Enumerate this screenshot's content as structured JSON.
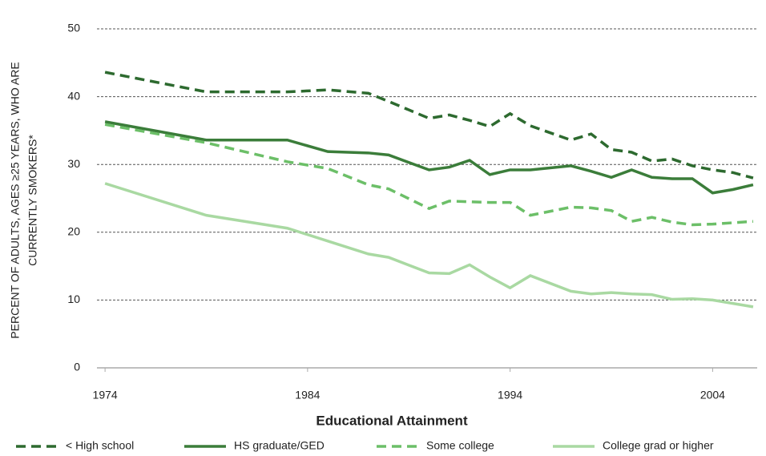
{
  "chart_data": {
    "type": "line",
    "ylabel": [
      "PERCENT OF ADULTS, AGES ≥25 YEARS, WHO ARE",
      "CURRENTLY SMOKERS*"
    ],
    "xlabel": "Educational Attainment",
    "x": [
      1974,
      1979,
      1983,
      1985,
      1987,
      1988,
      1990,
      1991,
      1992,
      1993,
      1994,
      1995,
      1997,
      1998,
      1999,
      2000,
      2001,
      2002,
      2003,
      2004,
      2005,
      2006
    ],
    "series": [
      {
        "name": "< High school",
        "color": "#2d6a2f",
        "dashed": true,
        "values": [
          43.6,
          40.7,
          40.7,
          41.0,
          40.5,
          39.3,
          36.8,
          37.3,
          36.5,
          35.6,
          37.5,
          35.7,
          33.6,
          34.5,
          32.2,
          31.8,
          30.5,
          30.8,
          29.8,
          29.2,
          28.8,
          28.0
        ]
      },
      {
        "name": "HS graduate/GED",
        "color": "#3b7d3a",
        "dashed": false,
        "values": [
          36.3,
          33.6,
          33.6,
          31.9,
          31.7,
          31.4,
          29.2,
          29.6,
          30.6,
          28.5,
          29.2,
          29.2,
          29.8,
          29.0,
          28.1,
          29.2,
          28.1,
          27.9,
          27.9,
          25.8,
          26.3,
          27.0
        ]
      },
      {
        "name": "Some college",
        "color": "#6cbf68",
        "dashed": true,
        "values": [
          35.9,
          33.2,
          30.4,
          29.4,
          27.0,
          26.4,
          23.5,
          24.6,
          24.5,
          24.4,
          24.4,
          22.5,
          23.7,
          23.6,
          23.2,
          21.6,
          22.2,
          21.5,
          21.1,
          21.2,
          21.4,
          21.6
        ]
      },
      {
        "name": "College grad or higher",
        "color": "#a9d9a2",
        "dashed": false,
        "values": [
          27.2,
          22.5,
          20.6,
          18.7,
          16.8,
          16.3,
          14.0,
          13.9,
          15.2,
          13.4,
          11.8,
          13.6,
          11.3,
          10.9,
          11.1,
          10.9,
          10.8,
          10.1,
          10.2,
          10.0,
          9.5,
          9.0
        ]
      }
    ],
    "xlim": [
      1973.6,
      2006.2
    ],
    "xticks": [
      1974,
      1984,
      1994,
      2004
    ],
    "ylim": [
      0,
      50
    ],
    "yticks": [
      0,
      10,
      20,
      30,
      40,
      50
    ],
    "grid": true,
    "legend": "bottom"
  }
}
